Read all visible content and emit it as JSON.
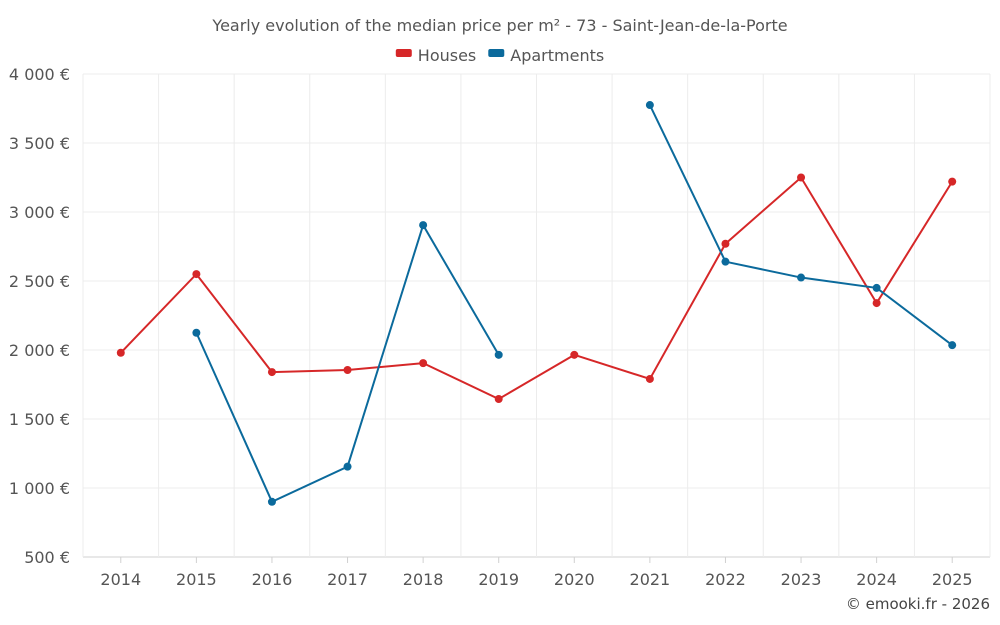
{
  "chart_data": {
    "type": "line",
    "title": "Yearly evolution of the median price per m² - 73 - Saint-Jean-de-la-Porte",
    "categories": [
      "2014",
      "2015",
      "2016",
      "2017",
      "2018",
      "2019",
      "2020",
      "2021",
      "2022",
      "2023",
      "2024",
      "2025"
    ],
    "y_ticks": [
      {
        "value": 500,
        "label": "500 €"
      },
      {
        "value": 1000,
        "label": "1 000 €"
      },
      {
        "value": 1500,
        "label": "1 500 €"
      },
      {
        "value": 2000,
        "label": "2 000 €"
      },
      {
        "value": 2500,
        "label": "2 500 €"
      },
      {
        "value": 3000,
        "label": "3 000 €"
      },
      {
        "value": 3500,
        "label": "3 500 €"
      },
      {
        "value": 4000,
        "label": "4 000 €"
      }
    ],
    "ylim": [
      500,
      4000
    ],
    "grid": true,
    "legend_position": "top-center",
    "series": [
      {
        "name": "Houses",
        "color": "#d62728",
        "values": [
          1980,
          2550,
          1840,
          1855,
          1905,
          1645,
          1965,
          1790,
          2770,
          3250,
          2340,
          3220
        ]
      },
      {
        "name": "Apartments",
        "color": "#0b6a9c",
        "values": [
          null,
          2125,
          900,
          1155,
          2905,
          1965,
          null,
          3775,
          2640,
          2525,
          2450,
          2035
        ]
      }
    ],
    "credit": "© emooki.fr - 2026"
  }
}
